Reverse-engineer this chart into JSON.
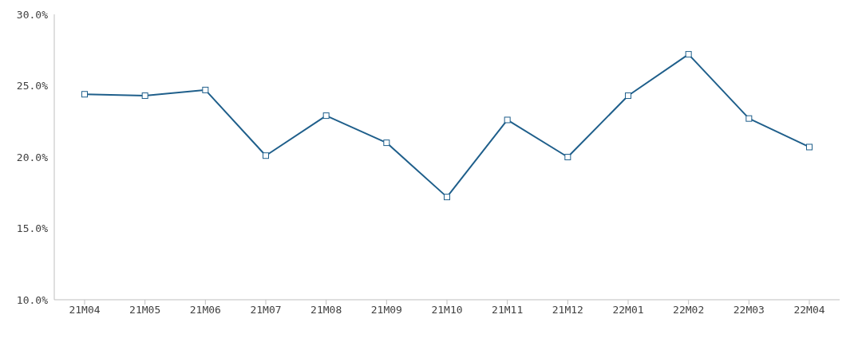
{
  "chart_data": {
    "type": "line",
    "categories": [
      "21M04",
      "21M05",
      "21M06",
      "21M07",
      "21M08",
      "21M09",
      "21M10",
      "21M11",
      "21M12",
      "22M01",
      "22M02",
      "22M03",
      "22M04"
    ],
    "series": [
      {
        "color": "#1f5f8b",
        "values": [
          24.4,
          24.3,
          24.7,
          20.1,
          22.9,
          21.0,
          17.2,
          22.6,
          20.0,
          24.3,
          27.2,
          22.7,
          20.7
        ]
      }
    ],
    "ylim": [
      10,
      30
    ],
    "yticks": [
      {
        "value": 10,
        "label": "10.0%"
      },
      {
        "value": 15,
        "label": "15.0%"
      },
      {
        "value": 20,
        "label": "20.0%"
      },
      {
        "value": 25,
        "label": "25.0%"
      },
      {
        "value": 30,
        "label": "30.0%"
      }
    ],
    "grid": false,
    "legend": false,
    "marker": "square",
    "line_style": "solid"
  }
}
